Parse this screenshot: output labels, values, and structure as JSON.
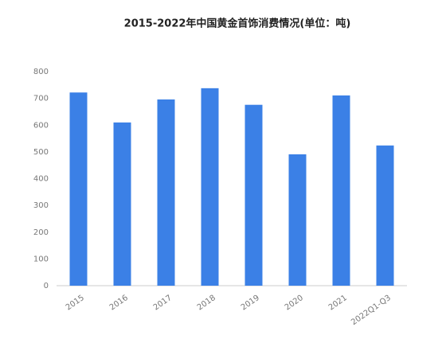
{
  "chart_data": {
    "type": "bar",
    "title": "2015-2022年中国黄金首饰消费情况(单位：吨)",
    "categories": [
      "2015",
      "2016",
      "2017",
      "2018",
      "2019",
      "2020",
      "2021",
      "2022Q1-Q3"
    ],
    "values": [
      722,
      610,
      696,
      738,
      676,
      491,
      711,
      524
    ],
    "color": "#3b80e6",
    "ylim": [
      0,
      800
    ],
    "yticks": [
      0,
      100,
      200,
      300,
      400,
      500,
      600,
      700,
      800
    ],
    "grid": false
  }
}
